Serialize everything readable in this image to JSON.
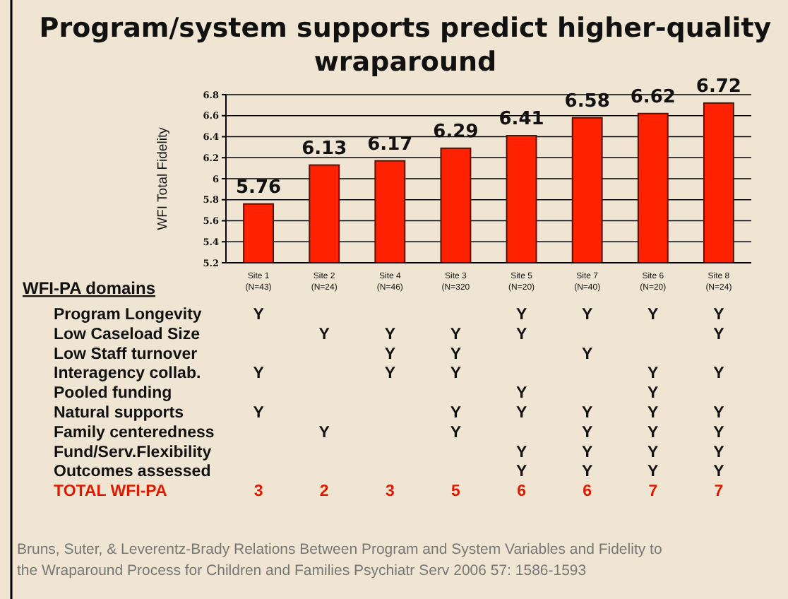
{
  "chart_data": [
    {
      "type": "bar",
      "title": "Program/system supports predict higher-quality wraparound",
      "ylabel": "WFI Total Fidelity",
      "categories": [
        "Site 1\n(N=43)",
        "Site 2\n(N=24)",
        "Site 4\n(N=46)",
        "Site 3\n(N=320",
        "Site 5\n(N=20)",
        "Site 7\n(N=40)",
        "Site 6\n(N=20)",
        "Site 8\n(N=24)"
      ],
      "values": [
        5.76,
        6.13,
        6.17,
        6.29,
        6.41,
        6.58,
        6.62,
        6.72
      ],
      "color": "#ff2200",
      "data_labels": true,
      "ylim": [
        5.2,
        6.8
      ],
      "yticks": [
        5.2,
        5.4,
        5.6,
        5.8,
        6,
        6.2,
        6.4,
        6.6,
        6.8
      ],
      "grid": "y",
      "annotations": [
        "Bruns, Suter, & Leverentz-Brady Relations Between Program and System Variables and Fidelity to the Wraparound Process for Children and Families Psychiatr Serv 2006 57: 1586-1593"
      ]
    },
    {
      "type": "heatmap",
      "title": "WFI-PA domains",
      "categories": [
        null,
        null,
        null,
        null,
        null,
        null,
        null,
        null
      ],
      "y_categories": [
        "Program Longevity",
        "Low Caseload Size",
        "Low Staff turnover",
        "Interagency collab.",
        "Pooled funding",
        "Natural supports",
        "Family centeredness",
        "Fund/Serv.Flexibility",
        "Outcomes assessed",
        "TOTAL WFI-PA"
      ],
      "cells": [
        [
          "Y",
          null,
          null,
          null,
          "Y",
          "Y",
          "Y",
          "Y"
        ],
        [
          null,
          "Y",
          "Y",
          "Y",
          "Y",
          null,
          null,
          "Y"
        ],
        [
          null,
          null,
          "Y",
          "Y",
          null,
          "Y",
          null,
          null
        ],
        [
          "Y",
          null,
          "Y",
          "Y",
          null,
          null,
          "Y",
          "Y"
        ],
        [
          null,
          null,
          null,
          null,
          "Y",
          null,
          "Y",
          null
        ],
        [
          "Y",
          null,
          null,
          "Y",
          "Y",
          "Y",
          "Y",
          "Y"
        ],
        [
          null,
          "Y",
          null,
          "Y",
          null,
          "Y",
          "Y",
          "Y"
        ],
        [
          null,
          null,
          null,
          null,
          "Y",
          "Y",
          "Y",
          "Y"
        ],
        [
          null,
          null,
          null,
          null,
          "Y",
          "Y",
          "Y",
          "Y"
        ],
        [
          "3",
          "2",
          "3",
          "5",
          "6",
          "6",
          "7",
          "7"
        ]
      ]
    }
  ]
}
